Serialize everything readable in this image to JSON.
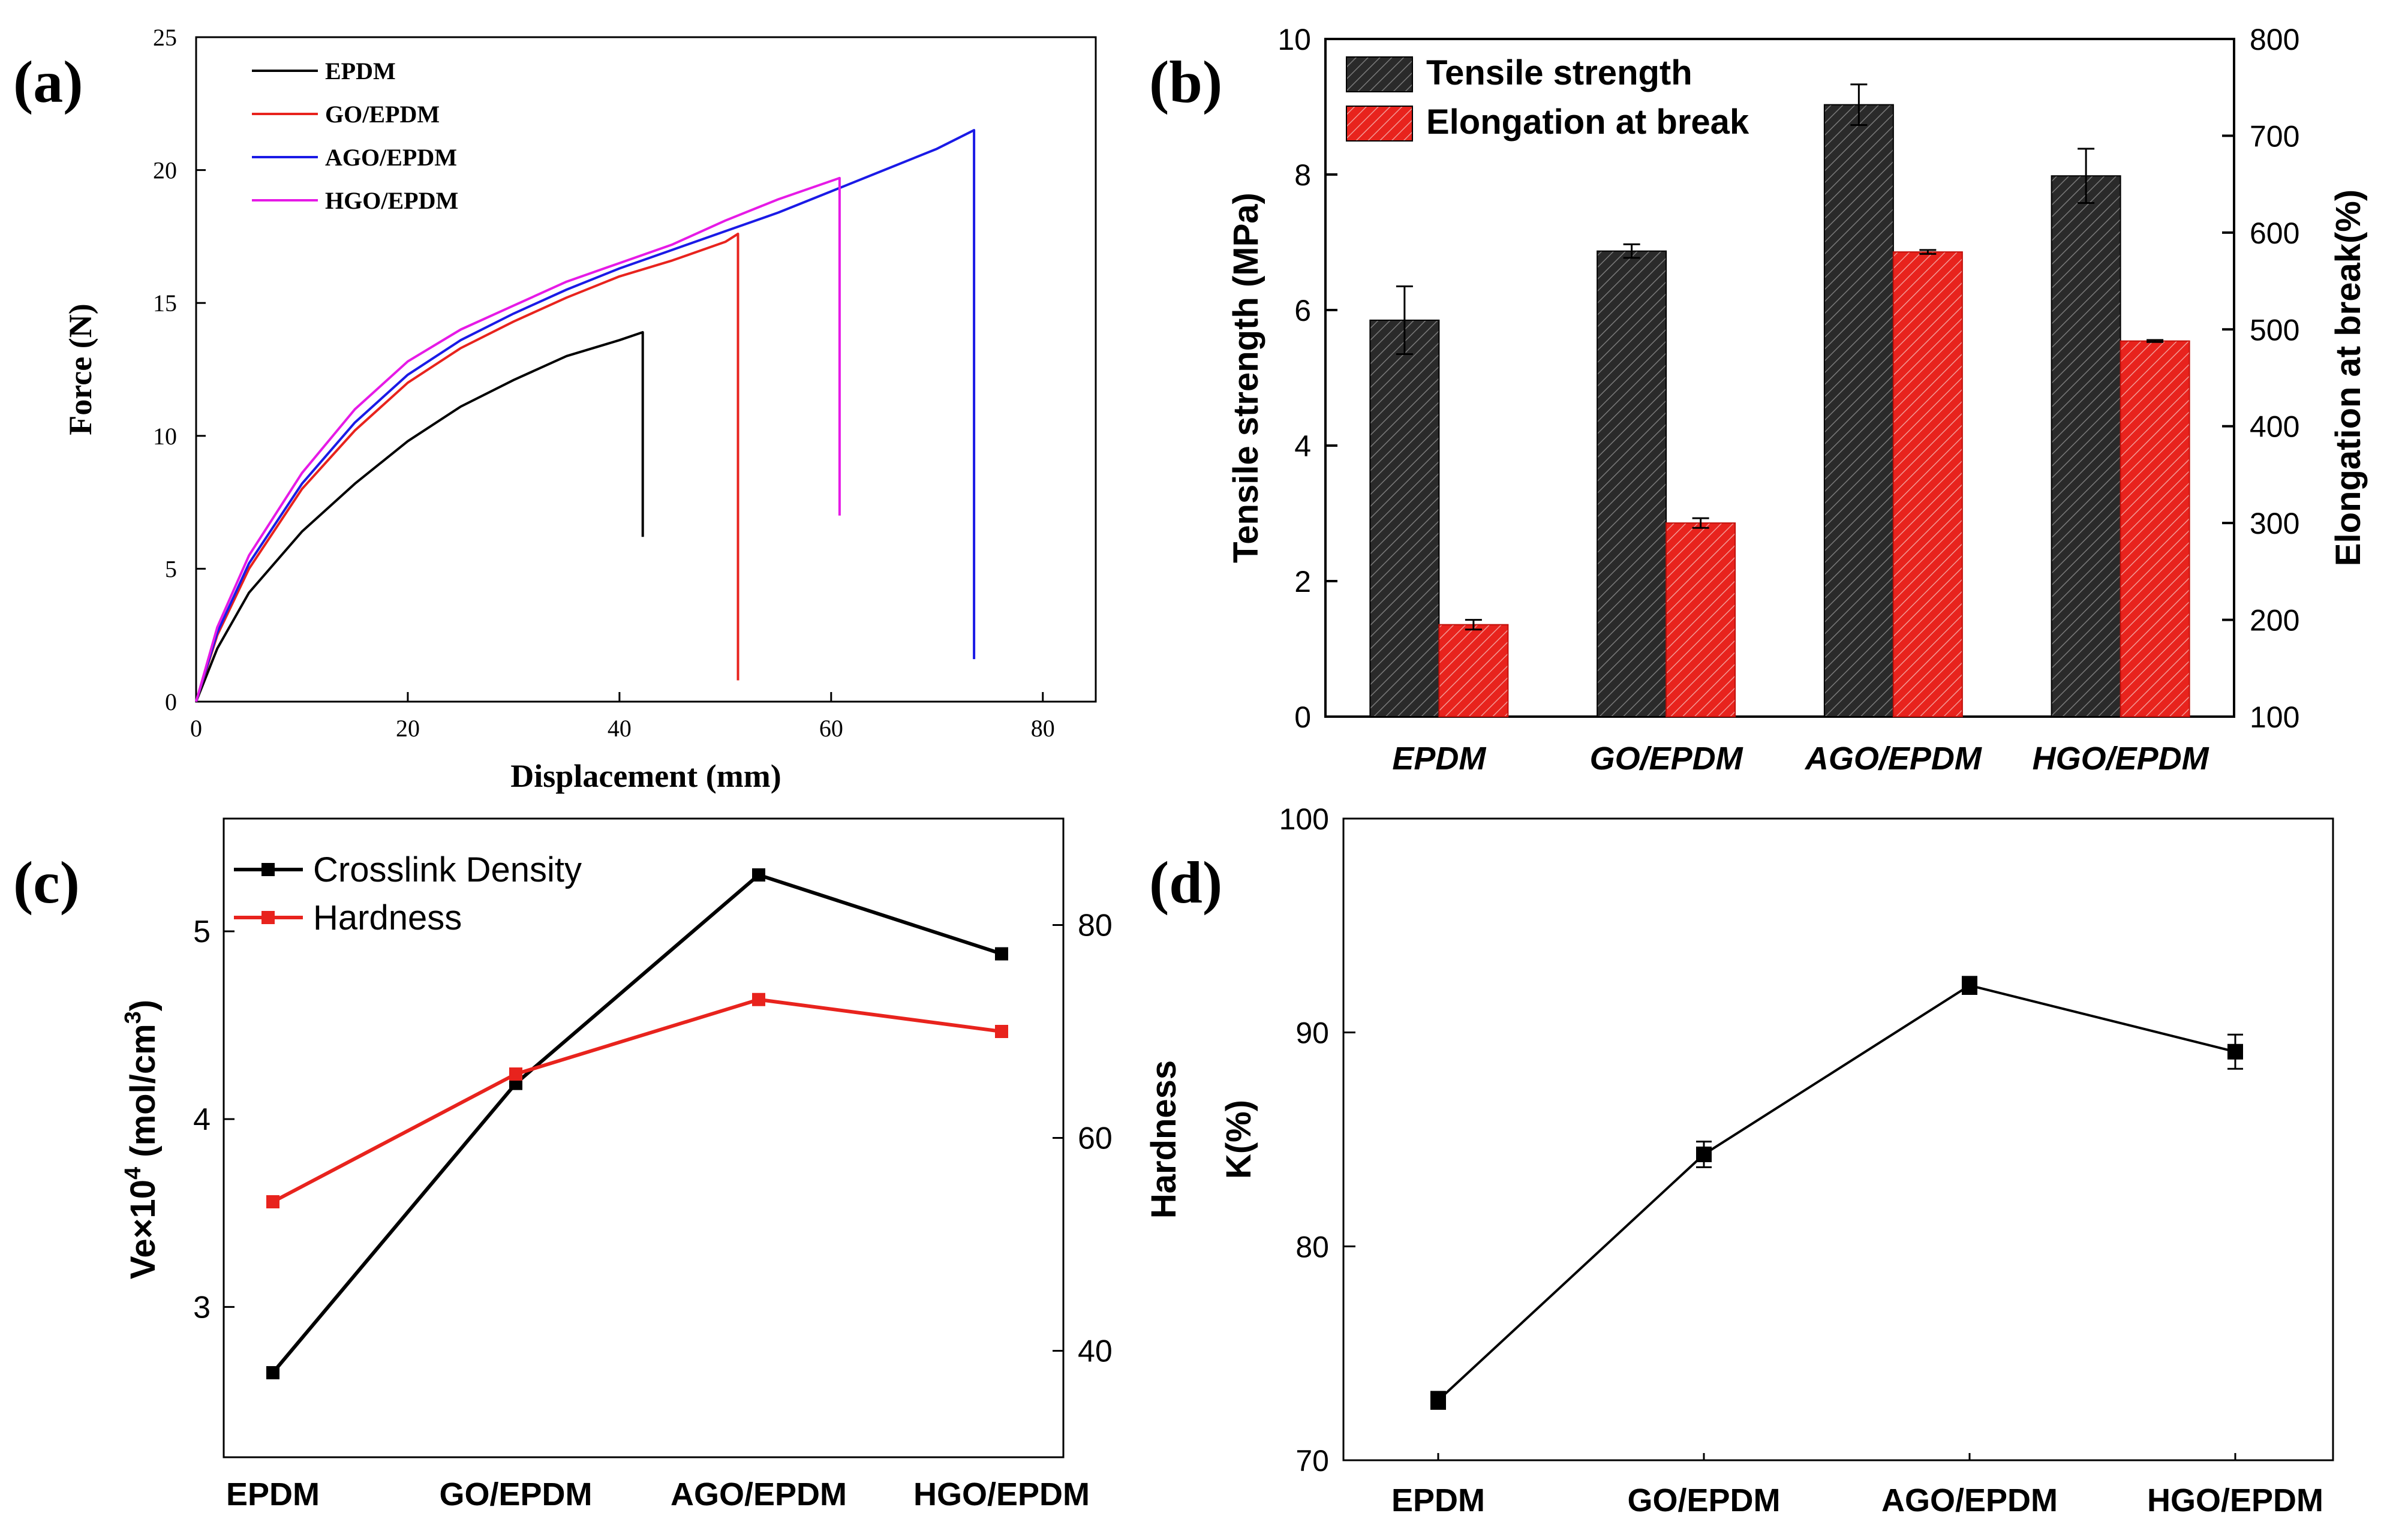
{
  "chart_data": [
    {
      "panel": "(a)",
      "type": "line",
      "xlabel": "Displacement (mm)",
      "ylabel": "Force (N)",
      "xlim": [
        0,
        85
      ],
      "ylim": [
        0,
        25
      ],
      "xticks": [
        "0",
        "20",
        "40",
        "60",
        "80"
      ],
      "yticks": [
        "0",
        "5",
        "10",
        "15",
        "20",
        "25"
      ],
      "legend_position": "top-left",
      "series": [
        {
          "name": "EPDM",
          "color": "#000000",
          "x": [
            0,
            2,
            5,
            10,
            15,
            20,
            25,
            30,
            35,
            40,
            42.2,
            42.2
          ],
          "y": [
            0,
            2.0,
            4.1,
            6.4,
            8.2,
            9.8,
            11.1,
            12.1,
            13.0,
            13.6,
            13.9,
            6.2
          ]
        },
        {
          "name": "GO/EPDM",
          "color": "#e8231d",
          "x": [
            0,
            2,
            5,
            10,
            15,
            20,
            25,
            30,
            35,
            40,
            45,
            50,
            51.2,
            51.2
          ],
          "y": [
            0,
            2.5,
            5.0,
            8.0,
            10.2,
            12.0,
            13.3,
            14.3,
            15.2,
            16.0,
            16.6,
            17.3,
            17.6,
            0.8
          ]
        },
        {
          "name": "AGO/EPDM",
          "color": "#1a1ae6",
          "x": [
            0,
            2,
            5,
            10,
            15,
            20,
            25,
            30,
            35,
            40,
            45,
            50,
            55,
            60,
            65,
            70,
            73.5,
            73.5
          ],
          "y": [
            0,
            2.6,
            5.2,
            8.2,
            10.5,
            12.3,
            13.6,
            14.6,
            15.5,
            16.3,
            17.0,
            17.7,
            18.4,
            19.2,
            20.0,
            20.8,
            21.5,
            1.6
          ]
        },
        {
          "name": "HGO/EPDM",
          "color": "#e61ae6",
          "x": [
            0,
            2,
            5,
            10,
            15,
            20,
            25,
            30,
            35,
            40,
            45,
            50,
            55,
            60.8,
            60.8
          ],
          "y": [
            0,
            2.8,
            5.5,
            8.6,
            11.0,
            12.8,
            14.0,
            14.9,
            15.8,
            16.5,
            17.2,
            18.1,
            18.9,
            19.7,
            7.0
          ]
        }
      ]
    },
    {
      "panel": "(b)",
      "type": "bar",
      "categories": [
        "EPDM",
        "GO/EPDM",
        "AGO/EPDM",
        "HGO/EPDM"
      ],
      "ylabel": "Tensile strength (MPa)",
      "y2label": "Elongation at break(%)",
      "ylim": [
        0,
        10
      ],
      "y2lim": [
        100,
        800
      ],
      "yticks": [
        "0",
        "2",
        "4",
        "6",
        "8",
        "10"
      ],
      "y2ticks": [
        "100",
        "200",
        "300",
        "400",
        "500",
        "600",
        "700",
        "800"
      ],
      "legend_position": "top-left",
      "series": [
        {
          "name": "Tensile strength",
          "axis": "left",
          "color": "#2a2a2a",
          "values": [
            5.85,
            6.87,
            9.03,
            7.98
          ],
          "errors": [
            0.5,
            0.1,
            0.3,
            0.4
          ]
        },
        {
          "name": "Elongation at break",
          "axis": "right",
          "color": "#e8231d",
          "values": [
            195,
            300,
            580,
            488
          ],
          "errors": [
            5,
            5,
            2,
            1
          ]
        }
      ]
    },
    {
      "panel": "(c)",
      "type": "line",
      "categories": [
        "EPDM",
        "GO/EPDM",
        "AGO/EPDM",
        "HGO/EPDM"
      ],
      "ylabel": "Ve×10",
      "ylabel_sup": "4",
      "ylabel_tail": " (mol/cm",
      "ylabel_sup2": "3",
      "ylabel_end": ")",
      "y2label": "Hardness",
      "ylim": [
        2.2,
        5.6
      ],
      "y2lim": [
        30,
        90
      ],
      "yticks": [
        "3",
        "4",
        "5"
      ],
      "y2ticks": [
        "40",
        "60",
        "80"
      ],
      "legend_position": "top-left",
      "series": [
        {
          "name": "Crosslink Density",
          "axis": "left",
          "color": "#000000",
          "values": [
            2.65,
            4.19,
            5.3,
            4.88
          ]
        },
        {
          "name": "Hardness",
          "axis": "right",
          "color": "#e8231d",
          "values": [
            54,
            66,
            73,
            70
          ]
        }
      ]
    },
    {
      "panel": "(d)",
      "type": "line",
      "categories": [
        "EPDM",
        "GO/EPDM",
        "AGO/EPDM",
        "HGO/EPDM"
      ],
      "ylabel": "K(%)",
      "ylim": [
        70,
        100
      ],
      "yticks": [
        "70",
        "80",
        "90",
        "100"
      ],
      "series": [
        {
          "name": "K",
          "color": "#000000",
          "values": [
            72.8,
            84.3,
            92.2,
            89.1
          ],
          "errors": [
            0.4,
            0.6,
            0.4,
            0.8
          ]
        }
      ]
    }
  ]
}
